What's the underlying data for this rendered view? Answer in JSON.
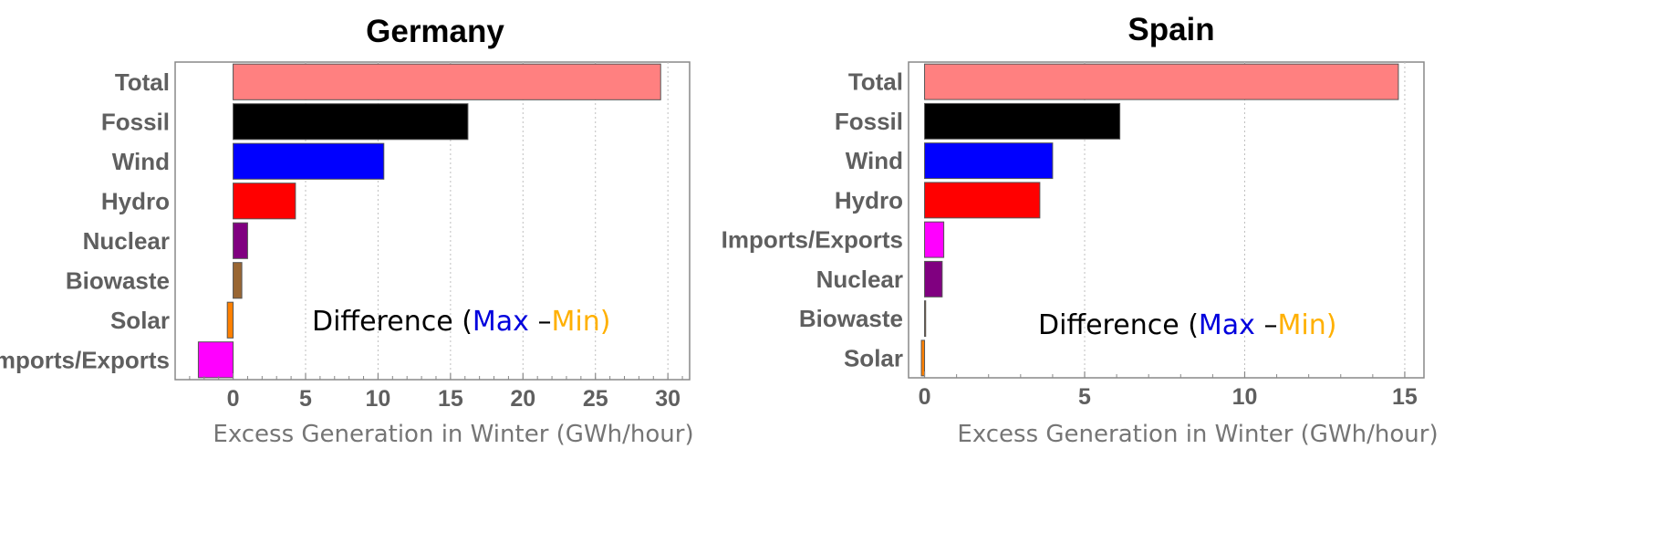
{
  "colors": {
    "Total": "#ff8080",
    "Fossil": "#000000",
    "Wind": "#0000ff",
    "Hydro": "#ff0000",
    "Nuclear": "#800080",
    "Biowaste": "#996633",
    "Solar": "#ff8000",
    "Imports/Exports": "#ff00ff",
    "annotation_text": "#000000",
    "annotation_max": "#0000dd",
    "annotation_min": "#ffb000",
    "gridline": "#bfbfbf",
    "frame": "#888888"
  },
  "chart_data": [
    {
      "type": "bar",
      "orientation": "horizontal",
      "title": "Germany",
      "xlabel": "Excess Generation in Winter (GWh/hour)",
      "ylabel": "",
      "categories": [
        "Total",
        "Fossil",
        "Wind",
        "Hydro",
        "Nuclear",
        "Biowaste",
        "Solar",
        "Imports/Exports"
      ],
      "values": [
        29.5,
        16.2,
        10.4,
        4.3,
        1.0,
        0.6,
        -0.4,
        -2.4
      ],
      "xlim": [
        -4,
        31.5
      ],
      "xticks": [
        0,
        5,
        10,
        15,
        20,
        25,
        30
      ],
      "grid": "vertical-dotted",
      "annotation": {
        "prefix": "Difference (",
        "max": "Max",
        "dash": " –",
        "min": "Min",
        "suffix": ")"
      }
    },
    {
      "type": "bar",
      "orientation": "horizontal",
      "title": "Spain",
      "xlabel": "Excess Generation in Winter (GWh/hour)",
      "ylabel": "",
      "categories": [
        "Total",
        "Fossil",
        "Wind",
        "Hydro",
        "Imports/Exports",
        "Nuclear",
        "Biowaste",
        "Solar"
      ],
      "values": [
        14.8,
        6.1,
        4.0,
        3.6,
        0.6,
        0.55,
        0.03,
        -0.1
      ],
      "xlim": [
        -0.5,
        15.6
      ],
      "xticks": [
        0,
        5,
        10,
        15
      ],
      "grid": "vertical-dotted",
      "annotation": {
        "prefix": "Difference (",
        "max": "Max",
        "dash": " –",
        "min": "Min",
        "suffix": ")"
      }
    }
  ]
}
